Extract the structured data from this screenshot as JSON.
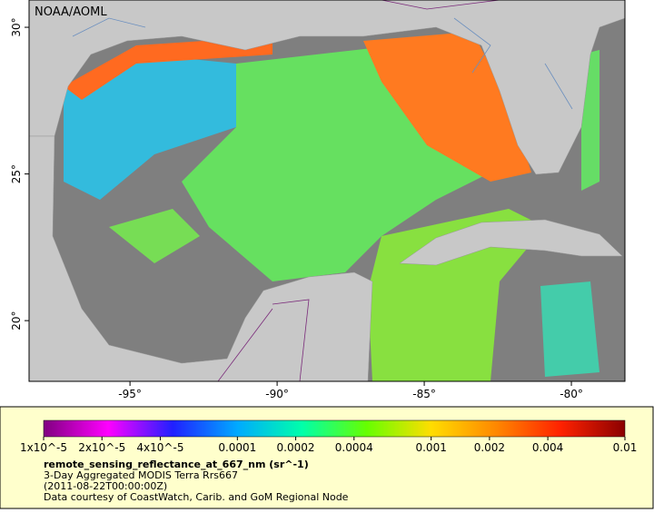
{
  "map": {
    "credit": "NOAA/AOML",
    "lon_range": [
      -98.43,
      -78.18
    ],
    "lat_range": [
      17.93,
      30.93
    ],
    "lon_ticks": [
      {
        "value": -95,
        "label": "-95°"
      },
      {
        "value": -90,
        "label": "-90°"
      },
      {
        "value": -85,
        "label": "-85°"
      },
      {
        "value": -80,
        "label": "-80°"
      }
    ],
    "lat_ticks": [
      {
        "value": 20,
        "label": "20°"
      },
      {
        "value": 25,
        "label": "25°"
      },
      {
        "value": 30,
        "label": "30°"
      }
    ]
  },
  "legend": {
    "colorbar": {
      "scale": "log",
      "range": [
        1e-05,
        0.01
      ],
      "colors": [
        "#800080",
        "#ff00ff",
        "#2020ff",
        "#00aaff",
        "#00ffaa",
        "#66ff00",
        "#ffdd00",
        "#ff8800",
        "#ff2200",
        "#8b0000"
      ],
      "ticks": [
        {
          "value": 1e-05,
          "label": "1x10^-5"
        },
        {
          "value": 2e-05,
          "label": "2x10^-5"
        },
        {
          "value": 4e-05,
          "label": "4x10^-5"
        },
        0.0001,
        0.0002,
        0.0004,
        0.001,
        0.002,
        0.004,
        0.01
      ]
    },
    "variable": "remote_sensing_reflectance_at_667_nm (sr^-1)",
    "dataset": "3-Day Aggregated MODIS Terra Rrs667",
    "time": "(2011-08-22T00:00:00Z)",
    "courtesy": "Data courtesy of CoastWatch, Carib. and GoM Regional Node"
  }
}
